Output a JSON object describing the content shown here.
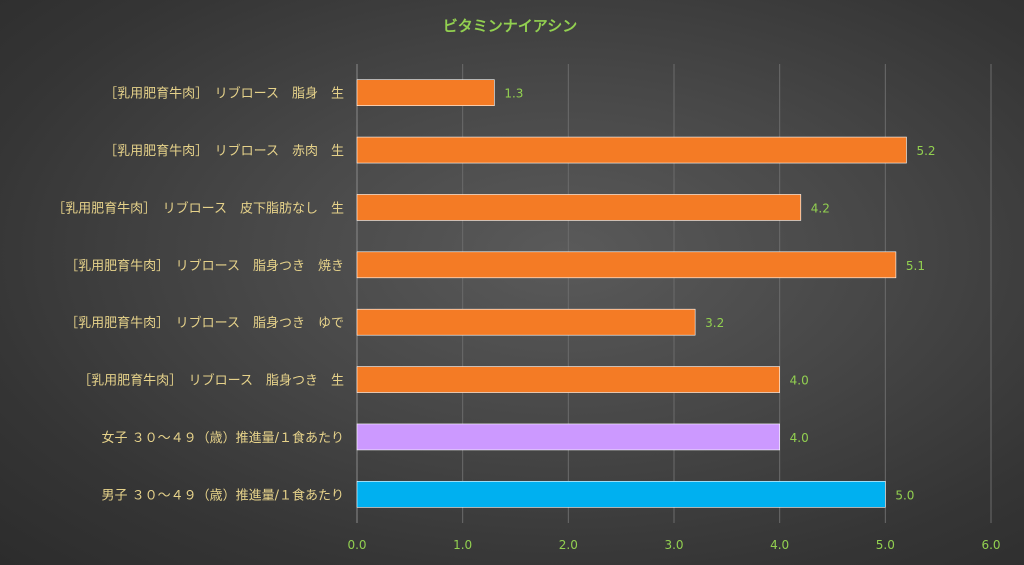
{
  "chart_data": {
    "type": "bar",
    "orientation": "horizontal",
    "title": "ビタミンナイアシン",
    "categories": [
      "［乳用肥育牛肉］　リブロース　脂身　生",
      "［乳用肥育牛肉］　リブロース　赤肉　生",
      "［乳用肥育牛肉］　リブロース　皮下脂肪なし　生",
      "［乳用肥育牛肉］　リブロース　脂身つき　焼き",
      "［乳用肥育牛肉］　リブロース　脂身つき　ゆで",
      "［乳用肥育牛肉］　リブロース　脂身つき　生",
      "女子 ３０～４９（歳）推進量/１食あたり",
      "男子 ３０～４９（歳）推進量/１食あたり"
    ],
    "values": [
      1.3,
      5.2,
      4.2,
      5.1,
      3.2,
      4.0,
      4.0,
      5.0
    ],
    "value_labels": [
      "1.3",
      "5.2",
      "4.2",
      "5.1",
      "3.2",
      "4.0",
      "4.0",
      "5.0"
    ],
    "bar_colors": [
      "#f47b25",
      "#f47b25",
      "#f47b25",
      "#f47b25",
      "#f47b25",
      "#f47b25",
      "#cc99ff",
      "#00b0f0"
    ],
    "xlim": [
      0,
      6
    ],
    "x_ticks": [
      "0.0",
      "1.0",
      "2.0",
      "3.0",
      "4.0",
      "5.0",
      "6.0"
    ],
    "grid": "vertical",
    "legend": "none"
  }
}
